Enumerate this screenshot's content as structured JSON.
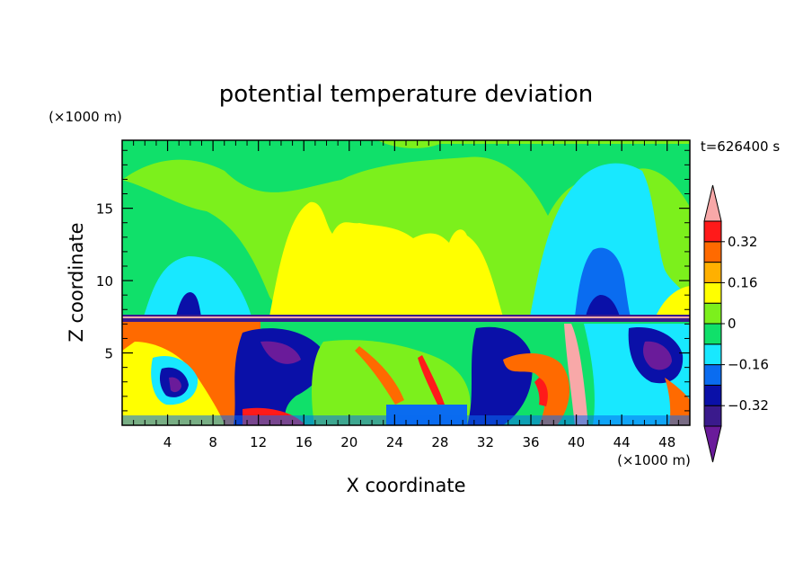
{
  "chart_data": {
    "type": "heatmap",
    "title": "potential temperature deviation",
    "xlabel": "X coordinate",
    "ylabel": "Z coordinate",
    "x_unit": "(×1000 m)",
    "y_unit": "(×1000 m)",
    "time_label": "t=626400 s",
    "xlim": [
      0,
      50
    ],
    "ylim": [
      0,
      19.7
    ],
    "x_ticks": [
      4,
      8,
      12,
      16,
      20,
      24,
      28,
      32,
      36,
      40,
      44,
      48
    ],
    "y_ticks": [
      5,
      10,
      15
    ],
    "colorbar": {
      "levels": [
        -0.4,
        -0.32,
        -0.24,
        -0.16,
        -0.08,
        0,
        0.08,
        0.16,
        0.24,
        0.32,
        0.4
      ],
      "tick_labels": [
        {
          "value": 0.32,
          "text": "0.32"
        },
        {
          "value": 0.16,
          "text": "0.16"
        },
        {
          "value": 0,
          "text": "0"
        },
        {
          "value": -0.16,
          "text": "−0.16"
        },
        {
          "value": -0.32,
          "text": "−0.32"
        }
      ],
      "colors_low_to_high": [
        "#6a1b9a",
        "#3a1a8c",
        "#0a10a8",
        "#0a6cf0",
        "#18e8ff",
        "#10e06a",
        "#7cf01c",
        "#ffff00",
        "#ffb000",
        "#ff6a00",
        "#ff1a1a",
        "#f8a8a8"
      ],
      "extend": "both"
    }
  }
}
